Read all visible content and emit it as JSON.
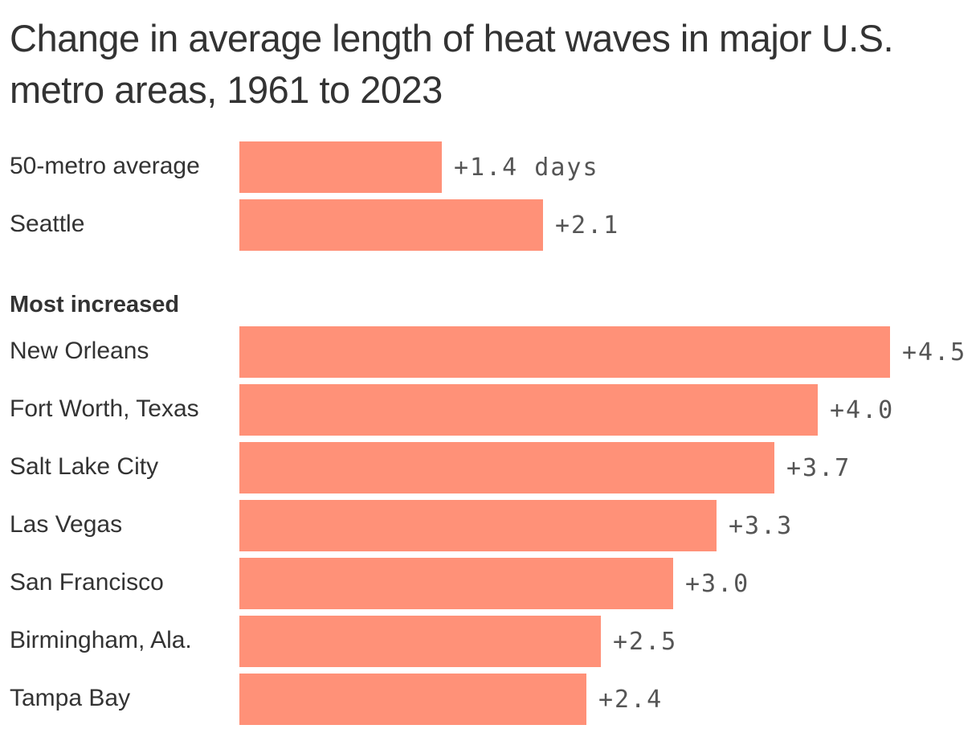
{
  "chart_data": {
    "type": "bar",
    "orientation": "horizontal",
    "title": "Change in average length of heat waves in major U.S. metro areas, 1961 to 2023",
    "unit": "days",
    "bar_color": "#ff9178",
    "groups": [
      {
        "heading": "",
        "categories": [
          "50-metro average",
          "Seattle"
        ],
        "values": [
          1.4,
          2.1
        ],
        "value_labels": [
          "+1.4 days",
          "+2.1"
        ]
      },
      {
        "heading": "Most increased",
        "categories": [
          "New Orleans",
          "Fort Worth, Texas",
          "Salt Lake City",
          "Las Vegas",
          "San Francisco",
          "Birmingham, Ala.",
          "Tampa Bay"
        ],
        "values": [
          4.5,
          4.0,
          3.7,
          3.3,
          3.0,
          2.5,
          2.4
        ],
        "value_labels": [
          "+4.5",
          "+4.0",
          "+3.7",
          "+3.3",
          "+3.0",
          "+2.5",
          "+2.4"
        ]
      }
    ],
    "xlim": [
      0,
      4.5
    ],
    "grid": false,
    "legend": "none"
  }
}
